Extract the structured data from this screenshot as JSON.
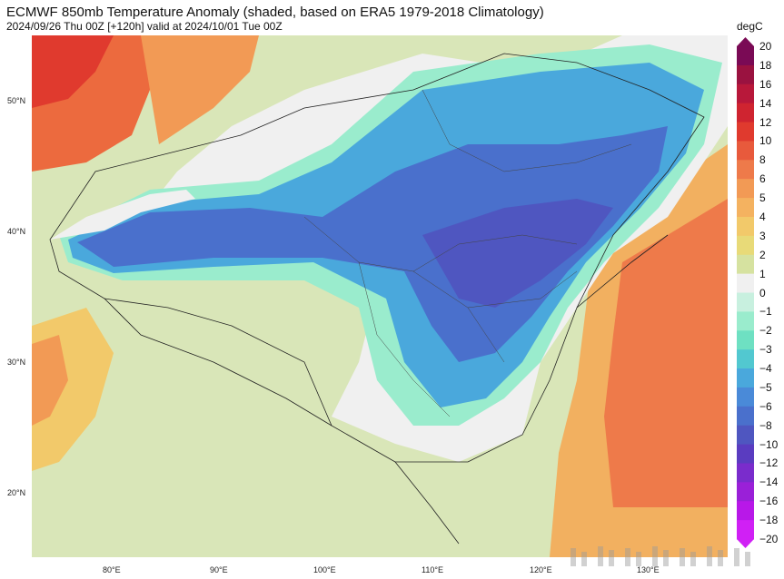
{
  "header": {
    "title": "ECMWF 850mb Temperature Anomaly (shaded, based on ERA5 1979-2018 Climatology)",
    "subtitle": "2024/09/26 Thu 00Z [+120h] valid at 2024/10/01 Tue 00Z"
  },
  "map": {
    "lat_labels": [
      "50°N",
      "40°N",
      "30°N",
      "20°N"
    ],
    "lon_labels": [
      "80°E",
      "90°E",
      "100°E",
      "110°E",
      "120°E",
      "130°E"
    ]
  },
  "colorbar": {
    "unit": "degC",
    "ticks": [
      "20",
      "18",
      "16",
      "14",
      "12",
      "10",
      "8",
      "6",
      "5",
      "4",
      "3",
      "2",
      "1",
      "0",
      "−1",
      "−2",
      "−3",
      "−4",
      "−5",
      "−6",
      "−8",
      "−10",
      "−12",
      "−14",
      "−16",
      "−18",
      "−20"
    ],
    "colors": [
      "#7a0a55",
      "#9a1240",
      "#b8183a",
      "#cf2430",
      "#e03a2e",
      "#e85a3c",
      "#ee7a4a",
      "#f29a55",
      "#f4b260",
      "#f2c96a",
      "#e8da78",
      "#d6e2a0",
      "#f0f0f0",
      "#c8f0df",
      "#9aeccd",
      "#6ee0c2",
      "#52c8d0",
      "#4aa8dc",
      "#4a8ad8",
      "#4a70cc",
      "#4f56c0",
      "#5a3cc0",
      "#7a2ccc",
      "#9a20d8",
      "#b818e8",
      "#d020f5"
    ]
  }
}
